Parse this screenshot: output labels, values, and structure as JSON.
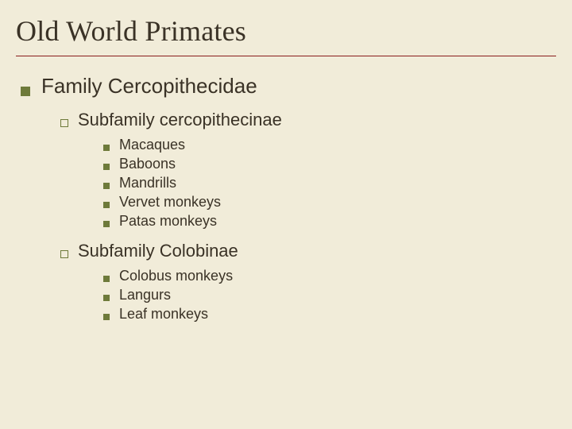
{
  "colors": {
    "background": "#f1ecd9",
    "title_text": "#3a3226",
    "title_underline": "#8a1c1c",
    "body_text": "#3a3226",
    "bullet_fill": "#6e7a3a",
    "bullet_open_border": "#6e7a3a"
  },
  "typography": {
    "title_family": "Times New Roman, Times, serif",
    "title_fontsize": 36,
    "lvl1_fontsize": 26,
    "lvl2_fontsize": 22,
    "lvl3_fontsize": 18
  },
  "title": "Old World Primates",
  "lvl1": {
    "text": "Family Cercopithecidae"
  },
  "sub1": {
    "heading": "Subfamily cercopithecinae",
    "items": [
      "Macaques",
      "Baboons",
      "Mandrills",
      "Vervet monkeys",
      "Patas monkeys"
    ]
  },
  "sub2": {
    "heading": "Subfamily Colobinae",
    "items": [
      "Colobus monkeys",
      "Langurs",
      "Leaf monkeys"
    ]
  }
}
